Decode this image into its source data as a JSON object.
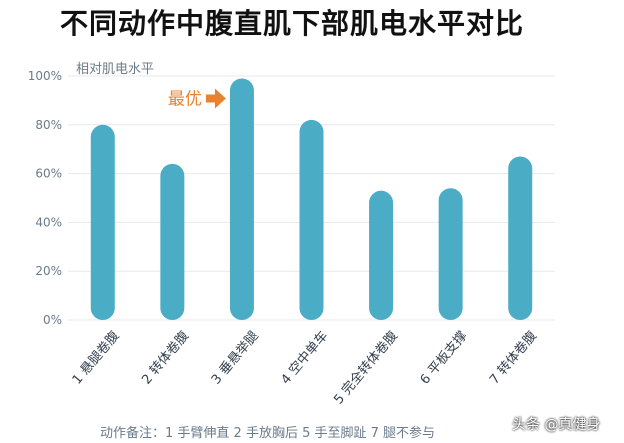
{
  "chart_data": {
    "type": "bar",
    "title": "不同动作中腹直肌下部肌电水平对比",
    "ylabel": "相对肌电水平",
    "ylim": [
      0,
      100
    ],
    "y_ticks": [
      "0%",
      "20%",
      "40%",
      "60%",
      "80%",
      "100%"
    ],
    "categories": [
      "1 悬腿卷腹",
      "2 转体卷腹",
      "3 垂悬举腿",
      "4 空中单车",
      "5 完全转体卷腹",
      "6 平板支撑",
      "7 转体卷腹"
    ],
    "values": [
      80,
      64,
      99,
      82,
      53,
      54,
      67
    ],
    "color": "#4bacc6",
    "grid": true,
    "annotation": {
      "text": "最优",
      "target_index": 2,
      "color": "#e8822f"
    },
    "footnote": "动作备注：1 手臂伸直    2 手放胸后    5 手至脚趾    7 腿不参与"
  },
  "watermark": "头条 @真健身"
}
